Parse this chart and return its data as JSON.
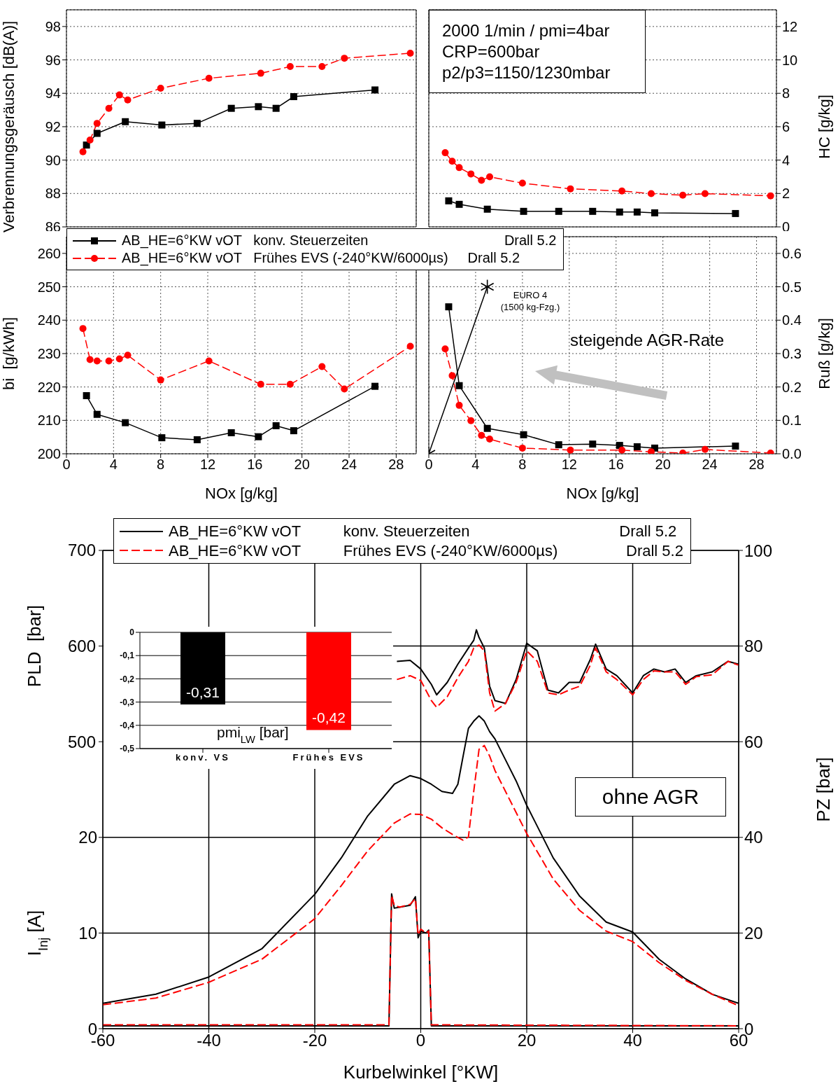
{
  "chart_data": [
    {
      "type": "line",
      "ylabel": "Verbrennungsgeräusch [dB(A)]",
      "xlim": [
        0,
        29.7
      ],
      "xticks": [
        0,
        4,
        8,
        12,
        16,
        20,
        24,
        28
      ],
      "ylim": [
        86,
        99
      ],
      "yticks": [
        86,
        88,
        90,
        92,
        94,
        96,
        98
      ],
      "grid": true,
      "tick_labels": "y",
      "series": [
        {
          "color": "#000000",
          "marker": "square",
          "line_style": "solid",
          "x": [
            1.7,
            2.6,
            5.0,
            8.1,
            11.1,
            14.0,
            16.3,
            17.8,
            19.3,
            26.2
          ],
          "values": [
            90.9,
            91.6,
            92.3,
            92.1,
            92.2,
            93.1,
            93.2,
            93.1,
            93.8,
            94.2
          ]
        },
        {
          "color": "#ff0000",
          "marker": "circle",
          "line_style": "dashed",
          "x": [
            1.4,
            2.0,
            2.6,
            3.6,
            4.5,
            5.2,
            8.0,
            12.1,
            16.5,
            19.0,
            21.7,
            23.6,
            29.2
          ],
          "values": [
            90.5,
            91.2,
            92.2,
            93.1,
            93.9,
            93.6,
            94.3,
            94.9,
            95.2,
            95.6,
            95.6,
            96.1,
            96.4
          ]
        }
      ]
    },
    {
      "type": "line",
      "y2label": "HC [g/kg]",
      "xlim": [
        0,
        29.7
      ],
      "xticks": [
        0,
        4,
        8,
        12,
        16,
        20,
        24,
        28
      ],
      "y2lim": [
        0,
        13
      ],
      "y2ticks": [
        0,
        2,
        4,
        6,
        8,
        10,
        12
      ],
      "grid": true,
      "tick_labels": "y",
      "annotations": [
        "2000 1/min / pmi=4bar",
        "CRP=600bar",
        "p2/p3=1150/1230mbar"
      ],
      "series": [
        {
          "color": "#000000",
          "marker": "square",
          "line_style": "solid",
          "axis": "y2",
          "x": [
            1.7,
            2.6,
            5.0,
            8.1,
            11.1,
            14.0,
            16.3,
            17.8,
            19.3,
            26.2
          ],
          "values": [
            1.56,
            1.35,
            1.06,
            0.93,
            0.93,
            0.93,
            0.89,
            0.89,
            0.84,
            0.8
          ]
        },
        {
          "color": "#ff0000",
          "marker": "circle",
          "line_style": "dashed",
          "axis": "y2",
          "x": [
            1.4,
            2.0,
            2.6,
            3.6,
            4.5,
            5.2,
            8.0,
            12.1,
            16.5,
            19.0,
            21.7,
            23.6,
            29.2
          ],
          "values": [
            4.44,
            3.93,
            3.55,
            3.17,
            2.79,
            3.0,
            2.62,
            2.28,
            2.15,
            1.99,
            1.9,
            1.99,
            1.86
          ]
        }
      ]
    },
    {
      "type": "line",
      "xlabel": "NOx [g/kg]",
      "ylabel": "bi  [g/kWh]",
      "xlim": [
        0,
        29.7
      ],
      "xticks": [
        0,
        4,
        8,
        12,
        16,
        20,
        24,
        28
      ],
      "ylim": [
        200,
        265
      ],
      "yticks": [
        200,
        210,
        220,
        230,
        240,
        250,
        260
      ],
      "grid": true,
      "legend": "top",
      "series": [
        {
          "name": "AB_HE=6°KW vOT   konv. Steuerzeiten                                   Drall 5.2",
          "color": "#000000",
          "marker": "square",
          "line_style": "solid",
          "x": [
            1.7,
            2.6,
            5.0,
            8.1,
            11.1,
            14.0,
            16.3,
            17.8,
            19.3,
            26.2
          ],
          "values": [
            217.4,
            211.8,
            209.3,
            204.8,
            204.2,
            206.3,
            205.1,
            208.4,
            206.9,
            220.2
          ]
        },
        {
          "name": "AB_HE=6°KW vOT   Frühes EVS (-240°KW/6000µs)     Drall 5.2",
          "color": "#ff0000",
          "marker": "circle",
          "line_style": "dashed",
          "x": [
            1.4,
            2.0,
            2.6,
            3.6,
            4.5,
            5.2,
            8.0,
            12.1,
            16.5,
            19.0,
            21.7,
            23.6,
            29.2
          ],
          "values": [
            237.5,
            228.2,
            227.8,
            227.8,
            228.4,
            229.5,
            222.1,
            227.8,
            220.8,
            220.8,
            226.1,
            219.4,
            232.2
          ]
        }
      ]
    },
    {
      "type": "line",
      "xlabel": "NOx [g/kg]",
      "y2label": "Ruß [g/kg]",
      "xlim": [
        0,
        29.7
      ],
      "xticks": [
        0,
        4,
        8,
        12,
        16,
        20,
        24,
        28
      ],
      "y2lim": [
        0,
        0.65
      ],
      "y2ticks": [
        {
          "value": 0,
          "label": "0.0"
        },
        0.1,
        0.2,
        0.3,
        0.4,
        0.5,
        0.6
      ],
      "grid": true,
      "annotations": [
        "EURO 4",
        "(1500 kg-Fzg.)",
        "steigende AGR-Rate"
      ],
      "series": [
        {
          "color": "#000000",
          "marker": "square",
          "line_style": "solid",
          "axis": "y2",
          "x": [
            1.7,
            2.6,
            5.0,
            8.1,
            11.1,
            14.0,
            16.3,
            17.8,
            19.3,
            26.2
          ],
          "values": [
            0.44,
            0.204,
            0.076,
            0.057,
            0.027,
            0.029,
            0.025,
            0.021,
            0.017,
            0.023
          ]
        },
        {
          "color": "#ff0000",
          "marker": "circle",
          "line_style": "dashed",
          "axis": "y2",
          "x": [
            1.4,
            2.0,
            2.6,
            3.6,
            4.5,
            5.2,
            8.0,
            12.1,
            16.5,
            19.0,
            21.7,
            23.6,
            29.2
          ],
          "values": [
            0.314,
            0.234,
            0.145,
            0.099,
            0.055,
            0.044,
            0.017,
            0.011,
            0.011,
            0.006,
            0.002,
            0.013,
            0.002
          ]
        },
        {
          "type": "line",
          "color": "#000000",
          "marker": "cross",
          "line_style": "solid",
          "axis": "y2",
          "x": [
            0,
            5
          ],
          "values": [
            0,
            0.5
          ]
        }
      ]
    },
    {
      "type": "line",
      "xlabel": "Kurbelwinkel [°KW]",
      "ylabel": "I$_{Inj}$ [A]",
      "y2label": "PZ [bar]",
      "y3label": "PLD  [bar]",
      "xlim": [
        -60,
        60
      ],
      "xticks": [
        -60,
        -40,
        -20,
        0,
        20,
        40,
        60
      ],
      "ylim": [
        0,
        50
      ],
      "yticks": [
        0,
        10,
        20
      ],
      "y2lim": [
        0,
        100
      ],
      "y2ticks": [
        0,
        20,
        40,
        60,
        80,
        100
      ],
      "y3lim": [
        200,
        700
      ],
      "y3ticks": [
        500,
        600,
        700
      ],
      "grid": true,
      "legend": "top",
      "annotations": [
        "ohne AGR"
      ],
      "series": [
        {
          "name": "AB_HE=6°KW vOT          konv. Steuerzeiten                                   Drall 5.2",
          "color": "#000000",
          "line_style": "solid",
          "axis": "y2",
          "x": [
            -60,
            -50,
            -40,
            -30,
            -20,
            -15,
            -10,
            -5,
            -2,
            0,
            2,
            4,
            6,
            7,
            8,
            9,
            10,
            11,
            12,
            13,
            14,
            16,
            18,
            20,
            25,
            30,
            35,
            40,
            45,
            50,
            55,
            60
          ],
          "values": [
            5.3,
            7.2,
            10.8,
            16.7,
            28.1,
            35.7,
            44.5,
            51.1,
            52.9,
            52.3,
            51.1,
            49.6,
            49.2,
            51.1,
            57,
            62.8,
            64.3,
            65.4,
            64.3,
            62.1,
            60.6,
            56.2,
            51.8,
            46.7,
            35.7,
            27.7,
            22.3,
            20.2,
            14.5,
            10.4,
            7.2,
            5.3
          ]
        },
        {
          "name": "AB_HE=6°KW vOT          Frühes EVS (-240°KW/6000µs)                Drall 5.2",
          "color": "#ff0000",
          "line_style": "dashed",
          "axis": "y2",
          "x": [
            -60,
            -50,
            -40,
            -30,
            -20,
            -15,
            -10,
            -5,
            -2,
            0,
            2,
            4,
            6,
            8,
            9,
            10,
            11,
            12,
            13,
            14,
            16,
            18,
            20,
            25,
            30,
            35,
            40,
            45,
            50,
            55,
            60
          ],
          "values": [
            5.0,
            6.4,
            9.7,
            14.5,
            23.0,
            29.9,
            37.2,
            43.0,
            44.9,
            44.8,
            43.8,
            42.0,
            40.6,
            39.4,
            40.1,
            49.6,
            58.4,
            59.2,
            57.0,
            54.0,
            49.6,
            45.2,
            40.8,
            31.3,
            24.7,
            20.4,
            18.2,
            13.8,
            10.1,
            7.2,
            4.8
          ]
        },
        {
          "color": "#000000",
          "line_style": "solid",
          "axis": "y",
          "x": [
            -60,
            -6,
            -5.5,
            -5,
            -4,
            -2,
            -1,
            -0.5,
            0,
            1,
            1.5,
            2,
            60
          ],
          "values": [
            0.3,
            0.3,
            14.1,
            12.6,
            12.7,
            12.9,
            13.8,
            9.5,
            10.2,
            10.0,
            10.3,
            0.3,
            0.3
          ]
        },
        {
          "color": "#ff0000",
          "line_style": "dashed",
          "axis": "y",
          "x": [
            -60,
            -6,
            -5.5,
            -5,
            -4,
            -2,
            -1,
            -0.5,
            0,
            1,
            1.5,
            2,
            60
          ],
          "values": [
            0.4,
            0.4,
            13.9,
            12.9,
            12.7,
            13.0,
            13.6,
            9.8,
            10.4,
            10.0,
            10.2,
            0.4,
            0.3
          ]
        },
        {
          "color": "#000000",
          "line_style": "solid",
          "axis": "y3",
          "x": [
            -4.5,
            -2,
            0,
            2,
            3,
            5,
            7,
            9,
            10,
            10.5,
            11,
            12,
            13,
            14,
            16,
            18,
            20,
            22,
            24,
            26,
            28,
            30,
            32,
            33,
            35,
            37,
            40,
            42,
            44,
            46,
            48,
            50,
            52,
            55,
            58,
            60
          ],
          "values": [
            584,
            585,
            576,
            560,
            549,
            562,
            581,
            598,
            606,
            617,
            609,
            598,
            558,
            543,
            540,
            565,
            603,
            595,
            554,
            551,
            562,
            562,
            586,
            602,
            576,
            569,
            551,
            569,
            576,
            573,
            576,
            562,
            569,
            573,
            584,
            581
          ]
        },
        {
          "color": "#ff0000",
          "line_style": "dashed",
          "axis": "y3",
          "x": [
            -4.5,
            -2,
            0,
            2,
            3,
            5,
            7,
            9,
            10,
            11,
            12,
            13,
            14,
            16,
            18,
            20,
            22,
            24,
            26,
            28,
            30,
            32,
            33,
            35,
            37,
            40,
            42,
            44,
            46,
            48,
            50,
            52,
            55,
            58,
            60
          ],
          "values": [
            565,
            569,
            564,
            543,
            536,
            547,
            567,
            584,
            598,
            601,
            595,
            551,
            532,
            540,
            562,
            595,
            584,
            551,
            549,
            554,
            558,
            580,
            598,
            573,
            565,
            549,
            565,
            574,
            573,
            573,
            560,
            568,
            570,
            584,
            580
          ]
        }
      ]
    },
    {
      "type": "bar",
      "xlabel": "pmi$_{LW}$ [bar]",
      "categories": [
        "konv. VS",
        "Frühes EVS"
      ],
      "values": [
        -0.31,
        -0.42
      ],
      "colors": [
        "#000000",
        "#ff0000"
      ],
      "ylim": [
        -0.5,
        0
      ],
      "yticks": [
        {
          "value": 0,
          "label": "0"
        },
        {
          "value": -0.1,
          "label": "-0,1"
        },
        {
          "value": -0.2,
          "label": "-0,2"
        },
        {
          "value": -0.3,
          "label": "-0,3"
        },
        {
          "value": -0.4,
          "label": "-0,4"
        },
        {
          "value": -0.5,
          "label": "-0,5"
        }
      ],
      "grid": "y",
      "value_labels": [
        "-0,31",
        "-0,42"
      ]
    }
  ]
}
